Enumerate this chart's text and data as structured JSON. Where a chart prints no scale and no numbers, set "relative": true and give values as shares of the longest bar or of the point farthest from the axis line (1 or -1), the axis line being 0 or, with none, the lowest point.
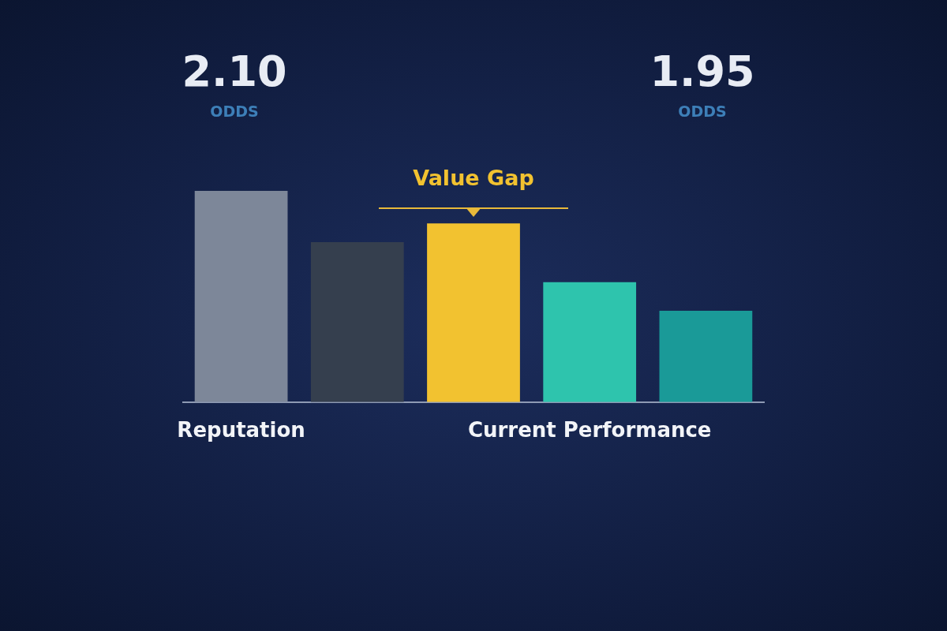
{
  "chart_data": {
    "type": "bar",
    "relative": true,
    "categories": [
      "Reputation",
      null,
      null,
      "Current Performance",
      null
    ],
    "colors": [
      "#7d8799",
      "#353f4e",
      "#f2c230",
      "#2ec4ad",
      "#1a9a98"
    ],
    "values": [
      1,
      0.757,
      0.846,
      0.568,
      0.432
    ],
    "annotations": [
      "2.10",
      "ODDS",
      "1.95",
      "ODDS",
      "Value Gap"
    ]
  }
}
